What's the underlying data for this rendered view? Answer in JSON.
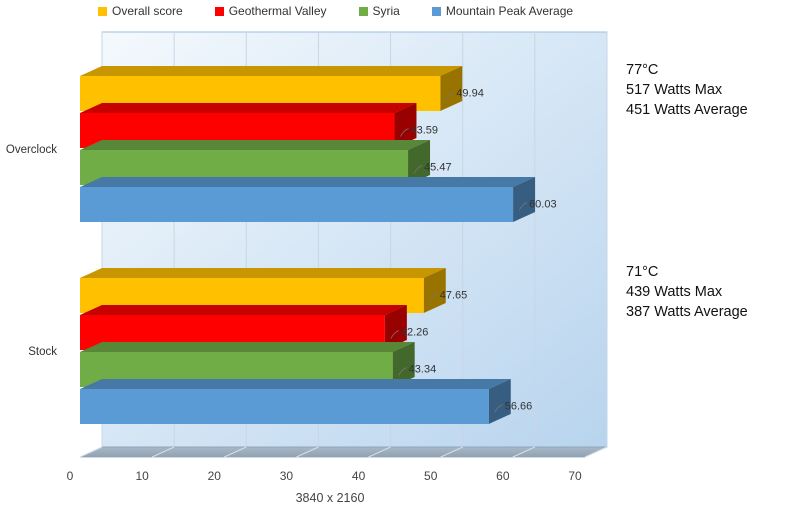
{
  "chart_data": {
    "type": "bar",
    "orientation": "horizontal",
    "style": "3d",
    "categories": [
      "Overclock",
      "Stock"
    ],
    "series": [
      {
        "name": "Overall score",
        "color": "#FFC000",
        "values": [
          49.94,
          47.65
        ]
      },
      {
        "name": "Geothermal Valley",
        "color": "#FF0000",
        "values": [
          43.59,
          42.26
        ]
      },
      {
        "name": "Syria",
        "color": "#70AD47",
        "values": [
          45.47,
          43.34
        ]
      },
      {
        "name": "Mountain Peak Average",
        "color": "#5B9BD5",
        "values": [
          60.03,
          56.66
        ]
      }
    ],
    "xlim": [
      0,
      70
    ],
    "xticks": [
      0,
      10,
      20,
      30,
      40,
      50,
      60,
      70
    ],
    "xlabel": "3840 x 2160",
    "title": "",
    "legend_position": "top",
    "grid": true
  },
  "annotations": [
    {
      "category": "Overclock",
      "lines": [
        "77°C",
        "517 Watts Max",
        "451 Watts Average"
      ]
    },
    {
      "category": "Stock",
      "lines": [
        "71°C",
        "439 Watts Max",
        "387 Watts Average"
      ]
    }
  ]
}
